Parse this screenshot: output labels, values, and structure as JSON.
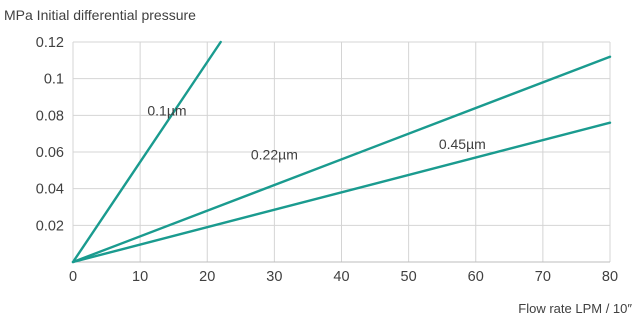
{
  "chart_data": {
    "type": "line",
    "ylabel": "MPa  Initial differential pressure",
    "xlabel": "Flow rate LPM / 10″",
    "xlim": [
      0,
      80
    ],
    "ylim": [
      0,
      0.12
    ],
    "x_ticks": [
      0,
      10,
      20,
      30,
      40,
      50,
      60,
      70,
      80
    ],
    "x_tick_labels": [
      "0",
      "10",
      "20",
      "30",
      "40",
      "50",
      "60",
      "70",
      "80"
    ],
    "y_ticks": [
      0.02,
      0.04,
      0.06,
      0.08,
      0.1,
      0.12
    ],
    "y_tick_labels": [
      "0.02",
      "0.04",
      "0.06",
      "0.08",
      "0.1",
      "0.12"
    ],
    "grid": true,
    "line_color": "#1a9b8f",
    "series": [
      {
        "name": "0.1µm",
        "x": [
          0,
          22
        ],
        "y": [
          0,
          0.12
        ]
      },
      {
        "name": "0.22µm",
        "x": [
          0,
          80
        ],
        "y": [
          0,
          0.112
        ]
      },
      {
        "name": "0.45µm",
        "x": [
          0,
          80
        ],
        "y": [
          0,
          0.076
        ]
      }
    ]
  }
}
